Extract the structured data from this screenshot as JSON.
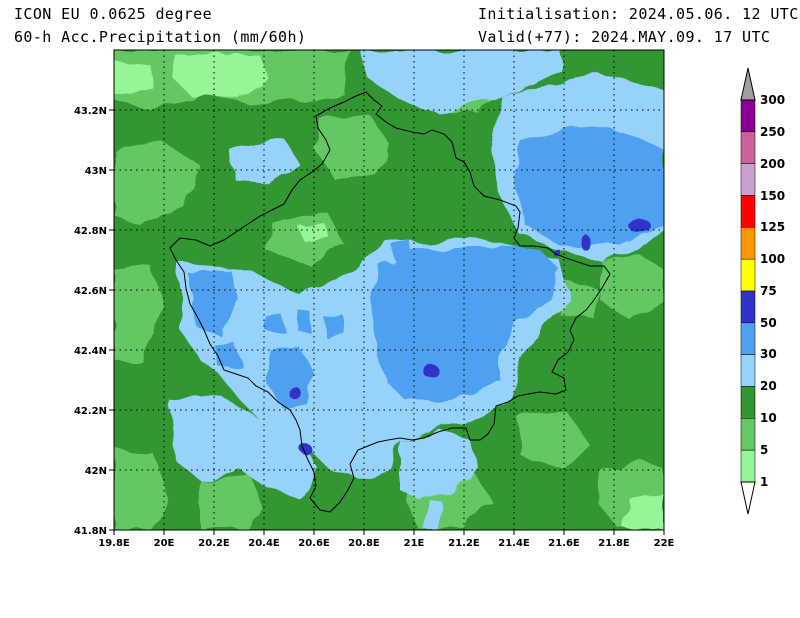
{
  "header": {
    "model": "ICON EU 0.0625 degree",
    "field": "60-h Acc.Precipitation (mm/60h)",
    "initialisation": "Initialisation: 2024.05.06. 12 UTC",
    "valid": "Valid(+77): 2024.MAY.09. 17 UTC"
  },
  "map": {
    "lon_range": [
      19.8,
      22.0
    ],
    "lat_range": [
      41.8,
      43.4
    ],
    "lon_ticks": [
      "19.8E",
      "20E",
      "20.2E",
      "20.4E",
      "20.6E",
      "20.8E",
      "21E",
      "21.2E",
      "21.4E",
      "21.6E",
      "21.8E",
      "22E"
    ],
    "lat_ticks": [
      "41.8N",
      "42N",
      "42.2N",
      "42.4N",
      "42.6N",
      "42.8N",
      "43N",
      "43.2N"
    ],
    "gridlines": "dotted"
  },
  "legend": {
    "levels": [
      {
        "label": "300",
        "color": "#a0a0a0"
      },
      {
        "label": "250",
        "color": "#8c0096"
      },
      {
        "label": "200",
        "color": "#c8649b"
      },
      {
        "label": "150",
        "color": "#c8a0d2"
      },
      {
        "label": "125",
        "color": "#ff0000"
      },
      {
        "label": "100",
        "color": "#ff9600"
      },
      {
        "label": "75",
        "color": "#ffff00"
      },
      {
        "label": "50",
        "color": "#3232c8"
      },
      {
        "label": "30",
        "color": "#50a0f0"
      },
      {
        "label": "20",
        "color": "#96d2fa"
      },
      {
        "label": "10",
        "color": "#329632"
      },
      {
        "label": "5",
        "color": "#64c864"
      },
      {
        "label": "1",
        "color": "#96f596"
      }
    ]
  }
}
